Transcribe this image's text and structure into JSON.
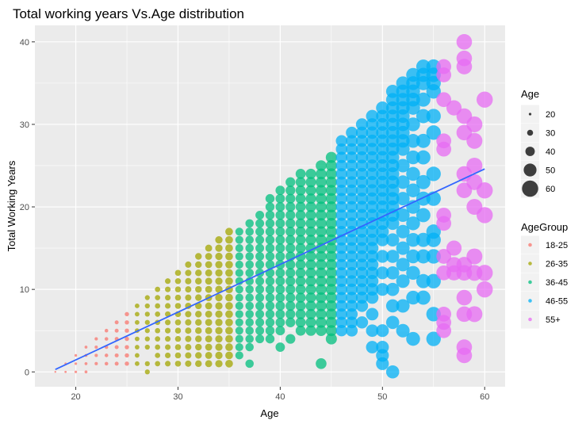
{
  "chart_data": {
    "type": "scatter",
    "title": "Total working years Vs.Age distribution",
    "xlabel": "Age",
    "ylabel": "Total Working Years",
    "xlim": [
      16,
      62
    ],
    "ylim": [
      -1.8,
      42
    ],
    "xticks": [
      20,
      30,
      40,
      50,
      60
    ],
    "yticks": [
      0,
      10,
      20,
      30,
      40
    ],
    "grid": true,
    "legend_position": "right",
    "size_legend": {
      "title": "Age",
      "values": [
        "20",
        "30",
        "40",
        "50",
        "60"
      ]
    },
    "color_legend": {
      "title": "AgeGroup",
      "groups": [
        {
          "name": "18-25",
          "color": "#F8766D",
          "ages": [
            18,
            25
          ]
        },
        {
          "name": "26-35",
          "color": "#A3A500",
          "ages": [
            26,
            35
          ]
        },
        {
          "name": "36-45",
          "color": "#00BF7D",
          "ages": [
            36,
            45
          ]
        },
        {
          "name": "46-55",
          "color": "#00B0F6",
          "ages": [
            46,
            55
          ]
        },
        {
          "name": "55+",
          "color": "#E76BF3",
          "ages": [
            56,
            60
          ]
        }
      ]
    },
    "series_by_age": [
      {
        "age": 18,
        "years": [
          0
        ]
      },
      {
        "age": 19,
        "years": [
          0,
          1
        ]
      },
      {
        "age": 20,
        "years": [
          0,
          1,
          2
        ]
      },
      {
        "age": 21,
        "years": [
          0,
          1,
          2,
          3
        ]
      },
      {
        "age": 22,
        "years": [
          1,
          2,
          3,
          4
        ]
      },
      {
        "age": 23,
        "years": [
          1,
          2,
          3,
          4,
          5
        ]
      },
      {
        "age": 24,
        "years": [
          1,
          2,
          3,
          4,
          5,
          6
        ]
      },
      {
        "age": 25,
        "years": [
          1,
          2,
          3,
          4,
          5,
          6,
          7
        ]
      },
      {
        "age": 26,
        "years": [
          1,
          2,
          3,
          4,
          5,
          6,
          7,
          8
        ]
      },
      {
        "age": 27,
        "years": [
          0,
          1,
          3,
          4,
          5,
          6,
          7,
          8,
          9
        ]
      },
      {
        "age": 28,
        "years": [
          1,
          2,
          3,
          4,
          5,
          6,
          7,
          8,
          9,
          10
        ]
      },
      {
        "age": 29,
        "years": [
          1,
          2,
          3,
          4,
          5,
          6,
          7,
          8,
          9,
          10,
          11
        ]
      },
      {
        "age": 30,
        "years": [
          1,
          2,
          3,
          4,
          5,
          6,
          7,
          8,
          9,
          10,
          11,
          12
        ]
      },
      {
        "age": 31,
        "years": [
          1,
          2,
          3,
          4,
          5,
          6,
          7,
          8,
          9,
          10,
          11,
          12,
          13
        ]
      },
      {
        "age": 32,
        "years": [
          1,
          2,
          3,
          4,
          5,
          6,
          7,
          8,
          9,
          10,
          11,
          12,
          13,
          14
        ]
      },
      {
        "age": 33,
        "years": [
          1,
          2,
          3,
          4,
          5,
          6,
          7,
          8,
          9,
          10,
          11,
          12,
          13,
          14,
          15
        ]
      },
      {
        "age": 34,
        "years": [
          1,
          2,
          3,
          4,
          5,
          6,
          7,
          8,
          9,
          10,
          11,
          12,
          13,
          14,
          15,
          16
        ]
      },
      {
        "age": 35,
        "years": [
          1,
          2,
          3,
          4,
          5,
          6,
          7,
          8,
          9,
          10,
          11,
          12,
          13,
          14,
          15,
          16,
          17
        ]
      },
      {
        "age": 36,
        "years": [
          2,
          3,
          4,
          5,
          6,
          7,
          8,
          9,
          10,
          11,
          12,
          13,
          14,
          15,
          16,
          17
        ]
      },
      {
        "age": 37,
        "years": [
          1,
          3,
          4,
          5,
          6,
          7,
          8,
          9,
          10,
          11,
          12,
          13,
          14,
          15,
          16,
          17,
          18
        ]
      },
      {
        "age": 38,
        "years": [
          4,
          5,
          6,
          7,
          8,
          9,
          10,
          11,
          12,
          13,
          14,
          15,
          16,
          17,
          18,
          19
        ]
      },
      {
        "age": 39,
        "years": [
          4,
          5,
          6,
          7,
          8,
          9,
          10,
          11,
          12,
          13,
          14,
          15,
          16,
          17,
          18,
          19,
          20,
          21
        ]
      },
      {
        "age": 40,
        "years": [
          3,
          5,
          6,
          7,
          8,
          9,
          10,
          11,
          12,
          13,
          14,
          15,
          16,
          17,
          18,
          19,
          20,
          21,
          22
        ]
      },
      {
        "age": 41,
        "years": [
          4,
          6,
          7,
          8,
          9,
          10,
          11,
          12,
          13,
          14,
          15,
          16,
          17,
          18,
          19,
          20,
          21,
          22,
          23
        ]
      },
      {
        "age": 42,
        "years": [
          5,
          6,
          7,
          8,
          9,
          10,
          11,
          12,
          13,
          14,
          15,
          16,
          17,
          18,
          19,
          20,
          21,
          22,
          23,
          24
        ]
      },
      {
        "age": 43,
        "years": [
          5,
          6,
          7,
          8,
          9,
          10,
          11,
          12,
          13,
          14,
          15,
          16,
          17,
          18,
          19,
          20,
          21,
          22,
          23,
          24
        ]
      },
      {
        "age": 44,
        "years": [
          1,
          5,
          6,
          7,
          8,
          9,
          10,
          11,
          12,
          13,
          14,
          15,
          16,
          17,
          18,
          19,
          20,
          21,
          22,
          23,
          24,
          25
        ]
      },
      {
        "age": 45,
        "years": [
          4,
          5,
          6,
          7,
          8,
          9,
          10,
          11,
          12,
          13,
          14,
          15,
          16,
          17,
          18,
          19,
          20,
          21,
          22,
          23,
          24,
          25,
          26
        ]
      },
      {
        "age": 46,
        "years": [
          5,
          6,
          7,
          8,
          9,
          10,
          11,
          12,
          13,
          14,
          15,
          16,
          17,
          18,
          19,
          20,
          21,
          22,
          23,
          24,
          25,
          26,
          27,
          28
        ]
      },
      {
        "age": 47,
        "years": [
          5,
          6,
          7,
          8,
          9,
          10,
          11,
          12,
          13,
          14,
          15,
          16,
          17,
          18,
          19,
          20,
          21,
          22,
          23,
          24,
          25,
          26,
          27,
          28,
          29
        ]
      },
      {
        "age": 48,
        "years": [
          6,
          8,
          9,
          10,
          11,
          12,
          13,
          14,
          15,
          16,
          17,
          18,
          19,
          20,
          21,
          22,
          23,
          24,
          25,
          26,
          27,
          28,
          29,
          30
        ]
      },
      {
        "age": 49,
        "years": [
          3,
          5,
          7,
          9,
          10,
          11,
          12,
          13,
          14,
          15,
          16,
          17,
          18,
          19,
          20,
          21,
          22,
          23,
          24,
          25,
          26,
          27,
          28,
          29,
          30,
          31
        ]
      },
      {
        "age": 50,
        "years": [
          1,
          2,
          3,
          5,
          10,
          12,
          14,
          16,
          17,
          18,
          19,
          20,
          21,
          22,
          23,
          24,
          25,
          26,
          27,
          28,
          29,
          30,
          31,
          32
        ]
      },
      {
        "age": 51,
        "years": [
          0,
          6,
          8,
          10,
          12,
          14,
          16,
          18,
          19,
          20,
          21,
          22,
          23,
          24,
          25,
          26,
          27,
          28,
          29,
          30,
          31,
          32,
          33,
          34
        ]
      },
      {
        "age": 52,
        "years": [
          5,
          8,
          11,
          13,
          15,
          17,
          19,
          21,
          23,
          25,
          27,
          28,
          29,
          30,
          31,
          32,
          33,
          34,
          35
        ]
      },
      {
        "age": 53,
        "years": [
          4,
          9,
          12,
          14,
          16,
          18,
          20,
          22,
          24,
          26,
          28,
          30,
          32,
          33,
          34,
          35,
          36
        ]
      },
      {
        "age": 54,
        "years": [
          9,
          11,
          14,
          16,
          19,
          21,
          23,
          26,
          28,
          31,
          33,
          35,
          36,
          37
        ]
      },
      {
        "age": 55,
        "years": [
          4,
          7,
          11,
          14,
          16,
          17,
          21,
          24,
          29,
          31,
          34,
          35,
          36,
          37
        ]
      },
      {
        "age": 56,
        "years": [
          5,
          6,
          7,
          12,
          14,
          18,
          19,
          27,
          28,
          33,
          36,
          37
        ]
      },
      {
        "age": 57,
        "years": [
          12,
          13,
          15,
          32
        ]
      },
      {
        "age": 58,
        "years": [
          2,
          3,
          7,
          9,
          12,
          13,
          22,
          24,
          29,
          31,
          37,
          38,
          40
        ]
      },
      {
        "age": 59,
        "years": [
          7,
          12,
          14,
          20,
          23,
          25,
          28,
          30
        ]
      },
      {
        "age": 60,
        "years": [
          10,
          12,
          19,
          22,
          33
        ]
      }
    ],
    "trend_line": {
      "color": "#3366FF",
      "x": [
        18,
        60
      ],
      "y": [
        0.3,
        24.6
      ]
    },
    "colors": {
      "panel": "#EBEBEB",
      "grid": "#FFFFFF",
      "legend_key": "#F2F2F2"
    }
  }
}
